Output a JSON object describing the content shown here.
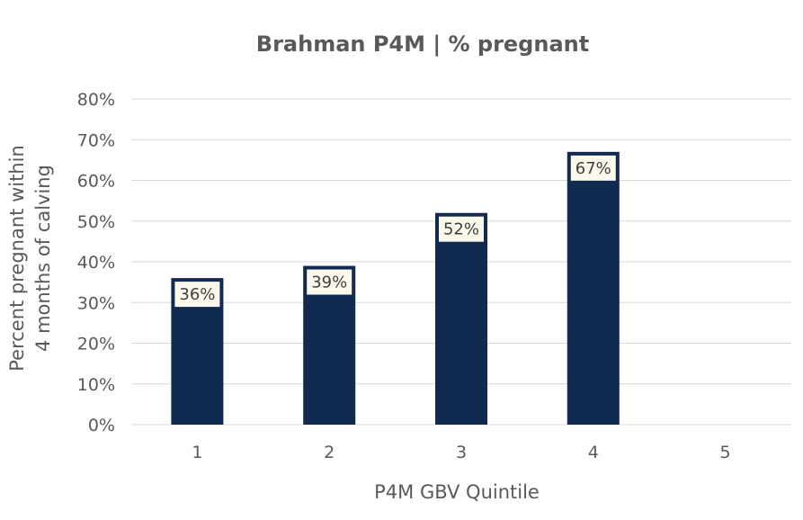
{
  "chart_data": {
    "type": "bar",
    "title": "Brahman P4M | % pregnant",
    "xlabel": "P4M GBV Quintile",
    "ylabel_lines": [
      "Percent pregnant within",
      "4 months of calving"
    ],
    "categories": [
      "1",
      "2",
      "3",
      "4",
      "5"
    ],
    "values": [
      36,
      39,
      52,
      67,
      null
    ],
    "data_labels": [
      "36%",
      "39%",
      "52%",
      "67%",
      ""
    ],
    "ylim": [
      0,
      80
    ],
    "yticks": [
      0,
      10,
      20,
      30,
      40,
      50,
      60,
      70,
      80
    ],
    "ytick_labels": [
      "0%",
      "10%",
      "20%",
      "30%",
      "40%",
      "50%",
      "60%",
      "70%",
      "80%"
    ],
    "grid": true,
    "legend": "none",
    "colors": {
      "bar": "#112a50",
      "label_bg": "#fbf9ec"
    }
  }
}
